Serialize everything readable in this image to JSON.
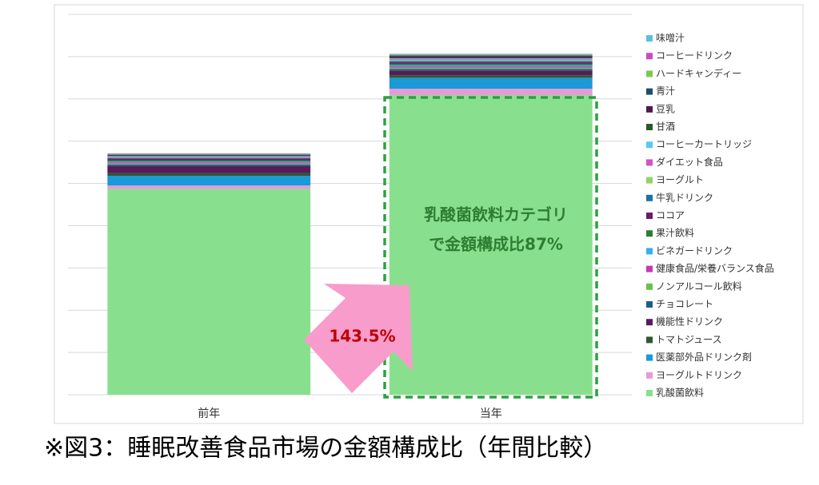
{
  "chart_data": {
    "type": "stacked-bar",
    "categories": [
      "前年",
      "当年"
    ],
    "ylim": [
      0,
      9
    ],
    "grid_lines": [
      1,
      2,
      3,
      4,
      5,
      6,
      7,
      8,
      9
    ],
    "legend_position": "right",
    "series": [
      {
        "name": "乳酸菌飲料",
        "color": "#88e08e",
        "values": [
          4.87,
          7.09
        ]
      },
      {
        "name": "ヨーグルトドリンク",
        "color": "#e89ad8",
        "values": [
          0.08,
          0.15
        ]
      },
      {
        "name": "医薬部外品ドリンク剤",
        "color": "#1a9ad6",
        "values": [
          0.23,
          0.26
        ]
      },
      {
        "name": "トマトジュース",
        "color": "#2d5a2d",
        "values": [
          0.06,
          0.06
        ]
      },
      {
        "name": "機能性ドリンク",
        "color": "#5a1a5a",
        "values": [
          0.17,
          0.11
        ]
      },
      {
        "name": "チョコレート",
        "color": "#1b5f85",
        "values": [
          0.04,
          0.04
        ]
      },
      {
        "name": "ノンアルコール飲料",
        "color": "#6cc04a",
        "values": [
          0.02,
          0.03
        ]
      },
      {
        "name": "健康食品/栄養バランス食品",
        "color": "#c03bb5",
        "values": [
          0.03,
          0.03
        ]
      },
      {
        "name": "ビネガードリンク",
        "color": "#3aaee8",
        "values": [
          0.02,
          0.03
        ]
      },
      {
        "name": "果汁飲料",
        "color": "#2e7d32",
        "values": [
          0.03,
          0.03
        ]
      },
      {
        "name": "ココア",
        "color": "#6a1a6a",
        "values": [
          0.04,
          0.04
        ]
      },
      {
        "name": "牛乳ドリンク",
        "color": "#1f6fa8",
        "values": [
          0.02,
          0.03
        ]
      },
      {
        "name": "ヨーグルト",
        "color": "#8fd46a",
        "values": [
          0.01,
          0.02
        ]
      },
      {
        "name": "ダイエット食品",
        "color": "#d64fc4",
        "values": [
          0.01,
          0.02
        ]
      },
      {
        "name": "コーヒーカートリッジ",
        "color": "#5ac8f0",
        "values": [
          0.01,
          0.02
        ]
      },
      {
        "name": "甘酒",
        "color": "#2a5a2a",
        "values": [
          0.01,
          0.02
        ]
      },
      {
        "name": "豆乳",
        "color": "#4b1a4e",
        "values": [
          0.02,
          0.03
        ]
      },
      {
        "name": "青汁",
        "color": "#1d4e6b",
        "values": [
          0.01,
          0.02
        ]
      },
      {
        "name": "ハードキャンディー",
        "color": "#7cc855",
        "values": [
          0.01,
          0.02
        ]
      },
      {
        "name": "コーヒードリンク",
        "color": "#c84bc8",
        "values": [
          0.01,
          0.01
        ]
      },
      {
        "name": "味噌汁",
        "color": "#5bc0de",
        "values": [
          0.01,
          0.01
        ]
      }
    ],
    "annotations": {
      "share_line1": "乳酸菌飲料カテゴリ",
      "share_line2": "で金額構成比87%",
      "growth": "143.5%"
    },
    "caption": "※図3：睡眠改善食品市場の金額構成比（年間比較）"
  }
}
